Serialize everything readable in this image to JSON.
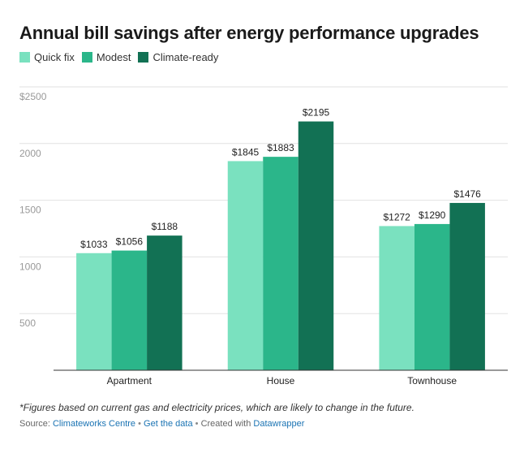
{
  "title": "Annual bill savings after energy performance upgrades",
  "legend": [
    {
      "label": "Quick fix",
      "color": "#7ae1bf"
    },
    {
      "label": "Modest",
      "color": "#2bb68a"
    },
    {
      "label": "Climate-ready",
      "color": "#127154"
    }
  ],
  "chart_data": {
    "type": "bar",
    "title": "Annual bill savings after energy performance upgrades",
    "categories": [
      "Apartment",
      "House",
      "Townhouse"
    ],
    "series": [
      {
        "name": "Quick fix",
        "values": [
          1033,
          1845,
          1272
        ],
        "color": "#7ae1bf"
      },
      {
        "name": "Modest",
        "values": [
          1056,
          1883,
          1290
        ],
        "color": "#2bb68a"
      },
      {
        "name": "Climate-ready",
        "values": [
          1188,
          2195,
          1476
        ],
        "color": "#127154"
      }
    ],
    "data_labels": [
      [
        "$1033",
        "$1845",
        "$1272"
      ],
      [
        "$1056",
        "$1883",
        "$1290"
      ],
      [
        "$1188",
        "$2195",
        "$1476"
      ]
    ],
    "yticks": [
      500,
      1000,
      1500,
      2000,
      2500
    ],
    "ytick_labels": [
      "500",
      "1000",
      "1500",
      "2000",
      "$2500"
    ],
    "ylim": [
      0,
      2500
    ],
    "xlabel": "",
    "ylabel": "",
    "grid": true,
    "legend_position": "top-left"
  },
  "footnote": "*Figures based on current gas and electricity prices, which are likely to change in the future.",
  "source": {
    "prefix": "Source: ",
    "source_link": "Climateworks Centre",
    "separator": "•",
    "data_link": "Get the data",
    "created": "Created with ",
    "tool_link": "Datawrapper"
  }
}
